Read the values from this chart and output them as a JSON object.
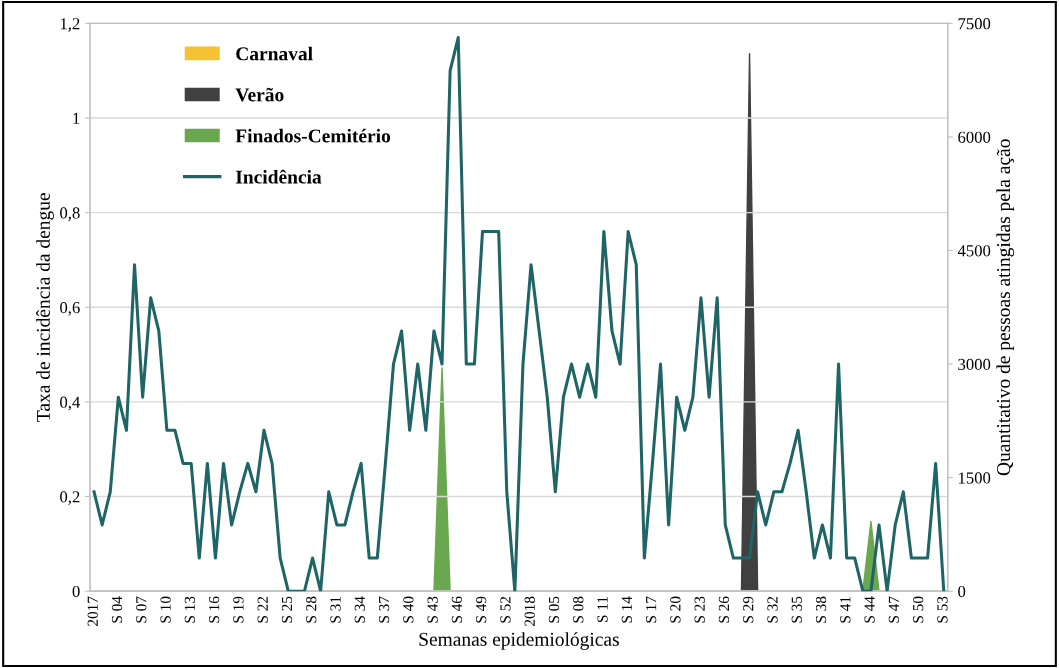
{
  "chart_data": {
    "type": "line",
    "xlabel": "Semanas epidemiológicas",
    "ylabel": "Taxa de incidência da dengue",
    "y2label": "Quantitativo de pessoas atingidas pela ação",
    "categories": [
      "2017",
      null,
      null,
      "S 04",
      null,
      null,
      "S 07",
      null,
      null,
      "S 10",
      null,
      null,
      "S 13",
      null,
      null,
      "S 16",
      null,
      null,
      "S 19",
      null,
      null,
      "S 22",
      null,
      null,
      "S 25",
      null,
      null,
      "S 28",
      null,
      null,
      "S 31",
      null,
      null,
      "S 34",
      null,
      null,
      "S 37",
      null,
      null,
      "S 40",
      null,
      null,
      "S 43",
      null,
      null,
      "S 46",
      null,
      null,
      "S 49",
      null,
      null,
      "S 52",
      null,
      null,
      "2018",
      null,
      null,
      "S 05",
      null,
      null,
      "S 08",
      null,
      null,
      "S 11",
      null,
      null,
      "S 14",
      null,
      null,
      "S 17",
      null,
      null,
      "S 20",
      null,
      null,
      "S 23",
      null,
      null,
      "S 26",
      null,
      null,
      "S 29",
      null,
      null,
      "S 32",
      null,
      null,
      "S 35",
      null,
      null,
      "S 38",
      null,
      null,
      "S 41",
      null,
      null,
      "S 44",
      null,
      null,
      "S 47",
      null,
      null,
      "S 50",
      null,
      null,
      "S 53"
    ],
    "series": [
      {
        "name": "Carnaval",
        "type": "area",
        "axis": "y2",
        "color": "#f4c232",
        "values": [
          null,
          null,
          null,
          null,
          null,
          null,
          null,
          null,
          null,
          null,
          null,
          null,
          null,
          null,
          null,
          null,
          null,
          null,
          null,
          null,
          null,
          null,
          null,
          null,
          null,
          null,
          null,
          null,
          null,
          null,
          null,
          null,
          null,
          null,
          null,
          null,
          null,
          null,
          null,
          null,
          null,
          null,
          null,
          null,
          null,
          null,
          null,
          null,
          null,
          null,
          null,
          null,
          null,
          null,
          null,
          null,
          null,
          null,
          null,
          null,
          null,
          null,
          null,
          null,
          null,
          null,
          null,
          null,
          null,
          null,
          null,
          null,
          null,
          null,
          null,
          null,
          null,
          null,
          null,
          null,
          null,
          null,
          null,
          null,
          null,
          null,
          null,
          null,
          null,
          null,
          null,
          null,
          null,
          null,
          null,
          null,
          null,
          null,
          null,
          null,
          null,
          null,
          null,
          null,
          null,
          null
        ]
      },
      {
        "name": "Verão",
        "type": "area",
        "axis": "y2",
        "color": "#404040",
        "values": [
          null,
          null,
          null,
          null,
          null,
          null,
          null,
          null,
          null,
          null,
          null,
          null,
          null,
          null,
          null,
          null,
          null,
          null,
          null,
          null,
          null,
          null,
          null,
          null,
          null,
          null,
          null,
          null,
          null,
          null,
          null,
          null,
          null,
          null,
          null,
          null,
          null,
          null,
          null,
          null,
          null,
          null,
          null,
          null,
          null,
          null,
          null,
          null,
          null,
          null,
          null,
          null,
          null,
          null,
          null,
          null,
          null,
          null,
          null,
          null,
          null,
          null,
          null,
          null,
          null,
          null,
          null,
          null,
          null,
          null,
          null,
          null,
          null,
          null,
          null,
          null,
          null,
          null,
          null,
          null,
          0,
          7100,
          0,
          null,
          null,
          null,
          null,
          null,
          null,
          null,
          null,
          null,
          null,
          null,
          null,
          null,
          null,
          null,
          null,
          null,
          null,
          null,
          null,
          null,
          null,
          null
        ]
      },
      {
        "name": "Finados-Cemitério",
        "type": "area",
        "axis": "y2",
        "color": "#6aa84f",
        "values": [
          0,
          0,
          0,
          0,
          0,
          0,
          0,
          0,
          0,
          0,
          0,
          0,
          0,
          0,
          0,
          0,
          0,
          0,
          0,
          0,
          0,
          0,
          0,
          0,
          0,
          0,
          0,
          0,
          0,
          0,
          0,
          0,
          0,
          0,
          0,
          0,
          0,
          0,
          0,
          0,
          0,
          0,
          0,
          2950,
          0,
          0,
          0,
          0,
          0,
          0,
          0,
          0,
          0,
          0,
          0,
          0,
          0,
          0,
          0,
          0,
          0,
          0,
          0,
          0,
          0,
          0,
          0,
          0,
          0,
          0,
          0,
          0,
          0,
          0,
          0,
          0,
          0,
          0,
          0,
          0,
          0,
          0,
          0,
          0,
          0,
          0,
          0,
          0,
          0,
          0,
          0,
          0,
          0,
          0,
          0,
          0,
          920,
          0,
          0,
          0,
          0,
          0,
          0,
          0,
          0,
          0
        ]
      },
      {
        "name": "Incidência",
        "axis": "y",
        "color": "#1f6566",
        "values": [
          0.21,
          0.14,
          0.21,
          0.41,
          0.34,
          0.69,
          0.41,
          0.62,
          0.55,
          0.34,
          0.34,
          0.27,
          0.27,
          0.07,
          0.27,
          0.07,
          0.27,
          0.14,
          0.21,
          0.27,
          0.21,
          0.34,
          0.27,
          0.07,
          0,
          0,
          0,
          0.07,
          0,
          0.21,
          0.14,
          0.14,
          0.21,
          0.27,
          0.07,
          0.07,
          0.27,
          0.48,
          0.55,
          0.34,
          0.48,
          0.34,
          0.55,
          0.48,
          1.1,
          1.17,
          0.48,
          0.48,
          0.76,
          0.76,
          0.76,
          0.21,
          0,
          0.48,
          0.69,
          0.55,
          0.41,
          0.21,
          0.41,
          0.48,
          0.41,
          0.48,
          0.41,
          0.76,
          0.55,
          0.48,
          0.76,
          0.69,
          0.07,
          0.27,
          0.48,
          0.14,
          0.41,
          0.34,
          0.41,
          0.62,
          0.41,
          0.62,
          0.14,
          0.07,
          0.07,
          0.07,
          0.21,
          0.14,
          0.21,
          0.21,
          0.27,
          0.34,
          0.21,
          0.07,
          0.14,
          0.07,
          0.48,
          0.07,
          0.07,
          0,
          0,
          0.14,
          0,
          0.14,
          0.21,
          0.07,
          0.07,
          0.07,
          0.27,
          0
        ]
      }
    ],
    "ylim": [
      0,
      1.2
    ],
    "yticks": [
      0,
      {
        "value": 0.2,
        "label": "0,2"
      },
      {
        "value": 0.4,
        "label": "0,4"
      },
      {
        "value": 0.6,
        "label": "0,6"
      },
      {
        "value": 0.8,
        "label": "0,8"
      },
      1,
      {
        "value": 1.2,
        "label": "1,2"
      }
    ],
    "y2lim": [
      0,
      7500
    ],
    "y2ticks": [
      0,
      1500,
      3000,
      4500,
      6000,
      7500
    ],
    "grid": "y",
    "legend": "top left"
  }
}
